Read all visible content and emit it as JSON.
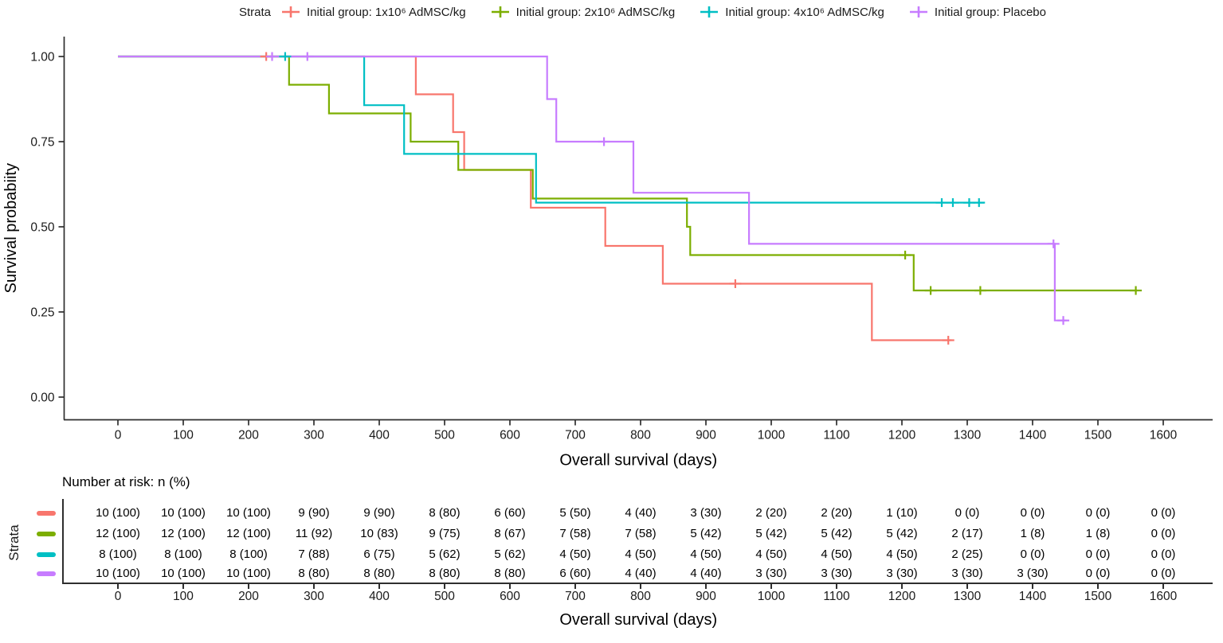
{
  "colors": {
    "group_1x": "#F8766D",
    "group_2x": "#7CAE00",
    "group_4x": "#00BFC4",
    "group_placebo": "#C77CFF",
    "axis": "#2e2e2e",
    "text": "#1a1a1a"
  },
  "legend": {
    "title": "Strata",
    "items": [
      {
        "label": "Initial group: 1x10⁶ AdMSC/kg",
        "color": "#F8766D"
      },
      {
        "label": "Initial group: 2x10⁶ AdMSC/kg",
        "color": "#7CAE00"
      },
      {
        "label": "Initial group: 4x10⁶ AdMSC/kg",
        "color": "#00BFC4"
      },
      {
        "label": "Initial group: Placebo",
        "color": "#C77CFF"
      }
    ]
  },
  "chart_data": {
    "type": "line",
    "subtype": "kaplan-meier-step-curves",
    "title": "",
    "xlabel": "Overall survival (days)",
    "ylabel": "Survival probabiity",
    "xlim": [
      0,
      1600
    ],
    "ylim": [
      0,
      1
    ],
    "grid": false,
    "legend_position": "top",
    "x_ticks": [
      0,
      100,
      200,
      300,
      400,
      500,
      600,
      700,
      800,
      900,
      1000,
      1100,
      1200,
      1300,
      1400,
      1500,
      1600
    ],
    "y_ticks": [
      0.0,
      0.25,
      0.5,
      0.75,
      1.0
    ],
    "y_tick_labels": [
      "0.00",
      "0.25",
      "0.50",
      "0.75",
      "1.00"
    ],
    "series": [
      {
        "name": "Initial group: 1x10⁶ AdMSC/kg",
        "color": "#F8766D",
        "start": [
          0,
          1.0
        ],
        "drops": [
          [
            456,
            0.889
          ],
          [
            513,
            0.778
          ],
          [
            530,
            0.667
          ],
          [
            632,
            0.556
          ],
          [
            746,
            0.444
          ],
          [
            834,
            0.333
          ],
          [
            1154,
            0.167
          ]
        ],
        "censors": [
          [
            227,
            1.0
          ],
          [
            945,
            0.333
          ],
          [
            1271,
            0.167
          ]
        ],
        "end_day": 1276
      },
      {
        "name": "Initial group: 2x10⁶ AdMSC/kg",
        "color": "#7CAE00",
        "start": [
          0,
          1.0
        ],
        "drops": [
          [
            262,
            0.917
          ],
          [
            323,
            0.833
          ],
          [
            448,
            0.75
          ],
          [
            521,
            0.667
          ],
          [
            635,
            0.583
          ],
          [
            871,
            0.5
          ],
          [
            876,
            0.417
          ],
          [
            1218,
            0.313
          ]
        ],
        "censors": [
          [
            1205,
            0.417
          ],
          [
            1244,
            0.313
          ],
          [
            1320,
            0.313
          ],
          [
            1558,
            0.313
          ]
        ],
        "end_day": 1560
      },
      {
        "name": "Initial group: 4x10⁶ AdMSC/kg",
        "color": "#00BFC4",
        "start": [
          0,
          1.0
        ],
        "drops": [
          [
            377,
            0.857
          ],
          [
            438,
            0.714
          ],
          [
            640,
            0.571
          ]
        ],
        "censors": [
          [
            256,
            1.0
          ],
          [
            1261,
            0.571
          ],
          [
            1278,
            0.571
          ],
          [
            1303,
            0.571
          ],
          [
            1318,
            0.571
          ]
        ],
        "end_day": 1326
      },
      {
        "name": "Initial group: Placebo",
        "color": "#C77CFF",
        "start": [
          0,
          1.0
        ],
        "drops": [
          [
            657,
            0.875
          ],
          [
            671,
            0.75
          ],
          [
            789,
            0.6
          ],
          [
            966,
            0.45
          ],
          [
            1434,
            0.225
          ]
        ],
        "censors": [
          [
            236,
            1.0
          ],
          [
            290,
            1.0
          ],
          [
            744,
            0.75
          ],
          [
            1432,
            0.45
          ],
          [
            1447,
            0.225
          ]
        ],
        "end_day": 1452
      }
    ]
  },
  "risk_table": {
    "title": "Number at risk: n (%)",
    "axis_label": "Strata",
    "xlabel": "Overall survival (days)",
    "rows": [
      {
        "color": "#F8766D",
        "values": [
          "10 (100)",
          "10 (100)",
          "10 (100)",
          "9 (90)",
          "9 (90)",
          "8 (80)",
          "6 (60)",
          "5 (50)",
          "4 (40)",
          "3 (30)",
          "2 (20)",
          "2 (20)",
          "1 (10)",
          "0 (0)",
          "0 (0)",
          "0 (0)",
          "0 (0)"
        ]
      },
      {
        "color": "#7CAE00",
        "values": [
          "12 (100)",
          "12 (100)",
          "12 (100)",
          "11 (92)",
          "10 (83)",
          "9 (75)",
          "8 (67)",
          "7 (58)",
          "7 (58)",
          "5 (42)",
          "5 (42)",
          "5 (42)",
          "5 (42)",
          "2 (17)",
          "1 (8)",
          "1 (8)",
          "0 (0)"
        ]
      },
      {
        "color": "#00BFC4",
        "values": [
          "8 (100)",
          "8 (100)",
          "8 (100)",
          "7 (88)",
          "6 (75)",
          "5 (62)",
          "5 (62)",
          "4 (50)",
          "4 (50)",
          "4 (50)",
          "4 (50)",
          "4 (50)",
          "4 (50)",
          "2 (25)",
          "0 (0)",
          "0 (0)",
          "0 (0)"
        ]
      },
      {
        "color": "#C77CFF",
        "values": [
          "10 (100)",
          "10 (100)",
          "10 (100)",
          "8 (80)",
          "8 (80)",
          "8 (80)",
          "8 (80)",
          "6 (60)",
          "4 (40)",
          "4 (40)",
          "3 (30)",
          "3 (30)",
          "3 (30)",
          "3 (30)",
          "3 (30)",
          "0 (0)",
          "0 (0)"
        ]
      }
    ]
  }
}
